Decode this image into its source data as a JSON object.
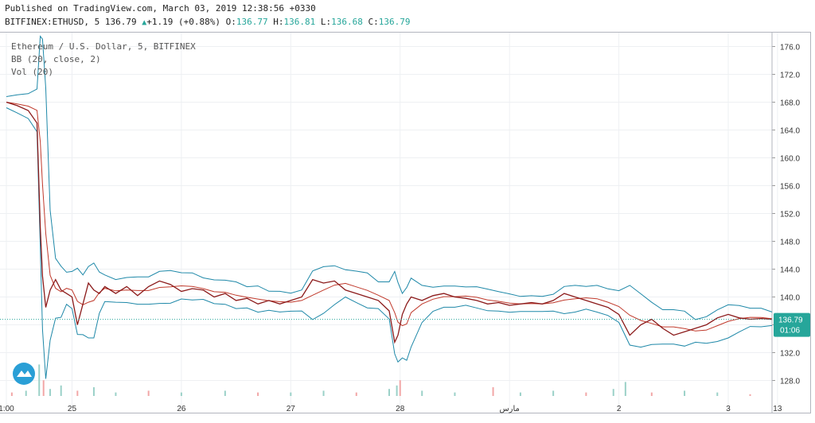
{
  "header": {
    "published": "Published on TradingView.com, March 03, 2019 12:38:56 +0330",
    "symbol": "BITFINEX:ETHUSD, 5",
    "last": "136.79",
    "change": "+1.19 (+0.88%)",
    "o_label": "O:",
    "o_value": "136.77",
    "h_label": "H:",
    "h_value": "136.81",
    "l_label": "L:",
    "l_value": "136.68",
    "c_label": "C:",
    "c_value": "136.79"
  },
  "legend": {
    "title": "Ethereum / U.S. Dollar, 5, BITFINEX",
    "bb": "BB (20, close, 2)",
    "vol": "Vol (20)"
  },
  "price_axis": {
    "current_price": "136.79",
    "countdown": "01:06"
  },
  "colors": {
    "price_line": "#8b1a1a",
    "bb_band": "#1e88a8",
    "bb_mid": "#c0392b",
    "vol_up": "#9bd1c8",
    "vol_down": "#f2a7a7",
    "last_price_bg": "#26a69a",
    "grid": "#eef0f3",
    "logo": "#2a9fd6"
  },
  "chart_data": {
    "type": "line",
    "title": "Ethereum / U.S. Dollar, 5, BITFINEX",
    "ylim": [
      126,
      178
    ],
    "yticks": [
      128,
      132,
      136,
      140,
      144,
      148,
      152,
      156,
      160,
      164,
      168,
      172,
      176
    ],
    "xticks": [
      "1:00",
      "25",
      "26",
      "27",
      "28",
      "مارس",
      "2",
      "3",
      "13"
    ],
    "x_range_days": [
      0,
      7
    ],
    "xtick_days": [
      0,
      0.6,
      1.6,
      2.6,
      3.6,
      4.6,
      5.6,
      6.6,
      7.05
    ],
    "series": [
      {
        "name": "ETHUSD",
        "x": [
          0,
          0.1,
          0.2,
          0.28,
          0.31,
          0.33,
          0.36,
          0.4,
          0.45,
          0.5,
          0.55,
          0.6,
          0.65,
          0.7,
          0.75,
          0.8,
          0.85,
          0.9,
          1.0,
          1.1,
          1.2,
          1.3,
          1.4,
          1.5,
          1.6,
          1.7,
          1.8,
          1.9,
          2.0,
          2.1,
          2.2,
          2.3,
          2.4,
          2.5,
          2.6,
          2.7,
          2.8,
          2.9,
          3.0,
          3.1,
          3.2,
          3.3,
          3.4,
          3.5,
          3.55,
          3.58,
          3.62,
          3.66,
          3.7,
          3.8,
          3.9,
          4.0,
          4.1,
          4.2,
          4.3,
          4.4,
          4.5,
          4.6,
          4.7,
          4.8,
          4.9,
          5.0,
          5.1,
          5.2,
          5.3,
          5.4,
          5.5,
          5.6,
          5.7,
          5.8,
          5.9,
          6.0,
          6.1,
          6.2,
          6.3,
          6.4,
          6.5,
          6.6,
          6.7,
          6.8,
          6.9,
          7.0
        ],
        "values": [
          168,
          167.5,
          166.8,
          165,
          150,
          143,
          138.5,
          141,
          142.5,
          141,
          140.5,
          140,
          136,
          139,
          142,
          141,
          140.5,
          141.5,
          140.5,
          141.5,
          140.2,
          141.5,
          142.3,
          141.8,
          140.8,
          141.2,
          141.0,
          140.0,
          140.5,
          139.5,
          139.8,
          139.0,
          139.5,
          139.0,
          139.5,
          140.0,
          142.5,
          142.0,
          142.3,
          141.0,
          140.5,
          140.0,
          139.5,
          138.0,
          133.5,
          134.5,
          137.5,
          139.0,
          140.0,
          139.5,
          140.2,
          140.5,
          140.0,
          139.8,
          139.5,
          139.0,
          139.2,
          138.8,
          139.0,
          139.2,
          139.0,
          139.5,
          140.5,
          140.0,
          139.5,
          139.0,
          138.5,
          137.5,
          134.5,
          136.0,
          136.8,
          135.5,
          134.5,
          135.0,
          135.5,
          136.0,
          137.0,
          137.5,
          137.0,
          136.8,
          136.9,
          136.79
        ]
      },
      {
        "name": "Volume",
        "x": [
          0.05,
          0.18,
          0.3,
          0.34,
          0.4,
          0.5,
          0.65,
          0.8,
          1.0,
          1.3,
          1.6,
          2.0,
          2.3,
          2.6,
          2.9,
          3.2,
          3.5,
          3.57,
          3.6,
          3.8,
          4.1,
          4.45,
          4.7,
          5.0,
          5.3,
          5.55,
          5.66,
          5.9,
          6.2,
          6.5,
          6.8
        ],
        "values": [
          2,
          3,
          18,
          9,
          4,
          6,
          3,
          5,
          2,
          3,
          2,
          3,
          2,
          2,
          3,
          2,
          4,
          6,
          9,
          3,
          2,
          5,
          2,
          3,
          2,
          4,
          8,
          2,
          3,
          2,
          1
        ]
      }
    ]
  }
}
